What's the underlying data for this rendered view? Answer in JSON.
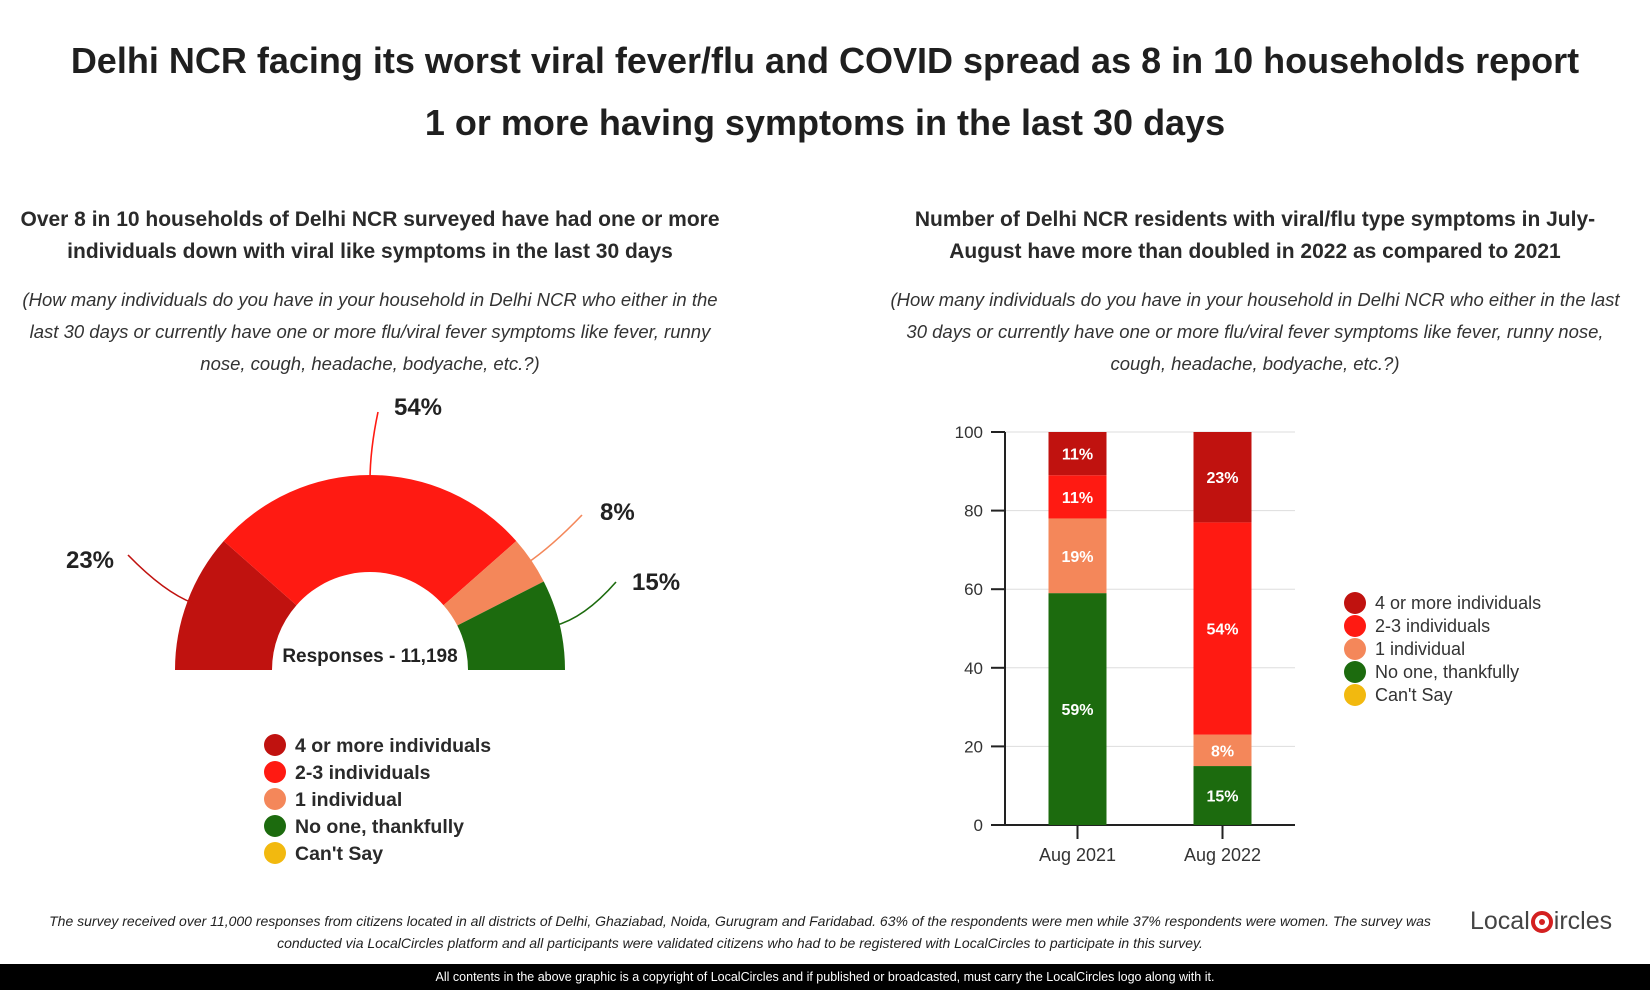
{
  "title": "Delhi NCR facing its worst viral fever/flu and COVID spread as 8 in 10 households report 1 or more having symptoms in the last 30 days",
  "left_panel": {
    "subtitle": "Over 8 in 10 households of Delhi NCR surveyed have had one or more individuals down with viral like symptoms in the last 30 days",
    "question": "(How many individuals do you have in your household in Delhi NCR who either in the last 30 days or currently have one or more flu/viral fever symptoms like fever, runny nose, cough, headache, bodyache, etc.?)"
  },
  "right_panel": {
    "subtitle": "Number of Delhi NCR residents with viral/flu type symptoms in July-August have more than doubled in 2022 as compared to 2021",
    "question": "(How many individuals do you have in your household in Delhi NCR who either in the last 30 days or currently have one or more flu/viral fever symptoms like fever, runny nose, cough, headache, bodyache, etc.?)"
  },
  "chart_data": [
    {
      "type": "pie",
      "variant": "half-donut",
      "center_label": "Responses - 11,198",
      "slices": [
        {
          "label": "4 or more individuals",
          "value": 23,
          "display": "23%",
          "color": "#c0120f"
        },
        {
          "label": "2-3 individuals",
          "value": 54,
          "display": "54%",
          "color": "#ff1a12"
        },
        {
          "label": "1 individual",
          "value": 8,
          "display": "8%",
          "color": "#f4875a"
        },
        {
          "label": "No one, thankfully",
          "value": 15,
          "display": "15%",
          "color": "#1c6b0e"
        },
        {
          "label": "Can't Say",
          "value": 0,
          "display": "",
          "color": "#f2b90f"
        }
      ],
      "legend": [
        {
          "label": "4 or more individuals",
          "color": "#c0120f"
        },
        {
          "label": "2-3 individuals",
          "color": "#ff1a12"
        },
        {
          "label": "1 individual",
          "color": "#f4875a"
        },
        {
          "label": "No one, thankfully",
          "color": "#1c6b0e"
        },
        {
          "label": "Can't Say",
          "color": "#f2b90f"
        }
      ],
      "legend_position": "bottom"
    },
    {
      "type": "bar",
      "stacked": true,
      "categories": [
        "Aug 2021",
        "Aug 2022"
      ],
      "series": [
        {
          "name": "No one, thankfully",
          "color": "#1c6b0e",
          "values": [
            59,
            15
          ],
          "labels": [
            "59%",
            "15%"
          ]
        },
        {
          "name": "1 individual",
          "color": "#f4875a",
          "values": [
            19,
            8
          ],
          "labels": [
            "19%",
            "8%"
          ]
        },
        {
          "name": "2-3 individuals",
          "color": "#ff1a12",
          "values": [
            11,
            54
          ],
          "labels": [
            "11%",
            "54%"
          ]
        },
        {
          "name": "4 or more individuals",
          "color": "#c0120f",
          "values": [
            11,
            23
          ],
          "labels": [
            "11%",
            "23%"
          ]
        },
        {
          "name": "Can't Say",
          "color": "#f2b90f",
          "values": [
            0,
            0
          ],
          "labels": [
            "",
            ""
          ]
        }
      ],
      "yticks": [
        "0",
        "20",
        "40",
        "60",
        "80",
        "100"
      ],
      "ylim": [
        0,
        100
      ],
      "grid": true,
      "legend": [
        {
          "label": "4 or more individuals",
          "color": "#c0120f"
        },
        {
          "label": "2-3 individuals",
          "color": "#ff1a12"
        },
        {
          "label": "1 individual",
          "color": "#f4875a"
        },
        {
          "label": "No one, thankfully",
          "color": "#1c6b0e"
        },
        {
          "label": "Can't Say",
          "color": "#f2b90f"
        }
      ],
      "legend_position": "right"
    }
  ],
  "footnote": "The survey received over 11,000 responses from citizens located in all districts of Delhi, Ghaziabad, Noida, Gurugram and Faridabad. 63% of the respondents were men while 37% respondents were women. The survey was conducted via LocalCircles platform and all participants were validated citizens who had to be registered with LocalCircles to participate in this survey.",
  "logo": {
    "part1": "Local",
    "part2": "ircles"
  },
  "copyright": "All contents in the above graphic is a copyright of LocalCircles and if published or broadcasted, must carry the LocalCircles logo along with it."
}
